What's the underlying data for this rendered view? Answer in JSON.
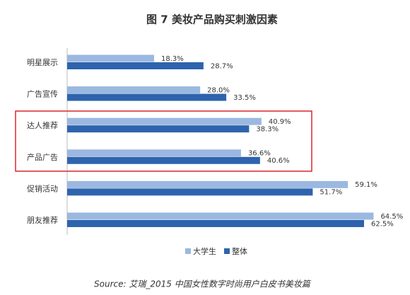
{
  "chart_data": {
    "type": "hbar",
    "title": "图 7 美妆产品购买刺激因素",
    "categories": [
      "明星展示",
      "广告宣传",
      "达人推荐",
      "产品广告",
      "促销活动",
      "朋友推荐"
    ],
    "series": [
      {
        "name": "大学生",
        "color": "#9bb8e0",
        "values": [
          18.3,
          28.0,
          40.9,
          36.6,
          59.1,
          64.5
        ],
        "value_labels": [
          "18.3%",
          "28.0%",
          "40.9%",
          "36.6%",
          "59.1%",
          "64.5%"
        ]
      },
      {
        "name": "整体",
        "color": "#2e64ad",
        "values": [
          28.7,
          33.5,
          38.3,
          40.6,
          51.7,
          62.5
        ],
        "value_labels": [
          "28.7%",
          "33.5%",
          "38.3%",
          "40.6%",
          "51.7%",
          "62.5%"
        ]
      }
    ],
    "source": "Source: 艾瑞_2015 中国女性数字时尚用户白皮书美妆篇"
  }
}
